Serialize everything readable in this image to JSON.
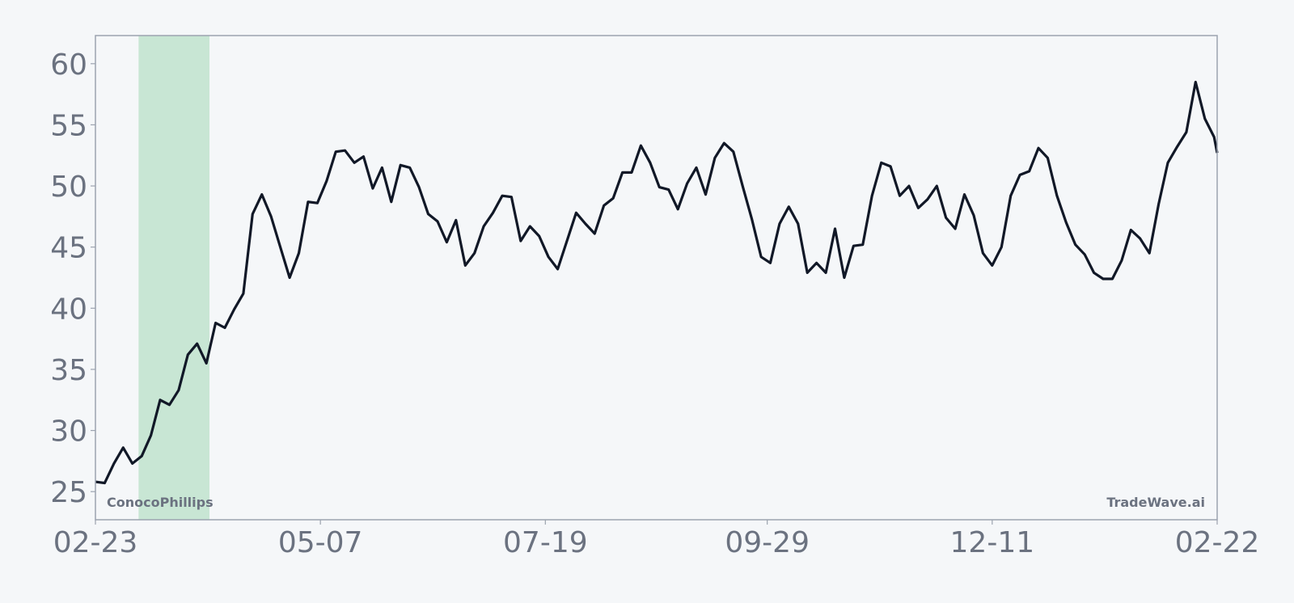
{
  "chart_data": {
    "type": "line",
    "title": "",
    "xlabel": "",
    "ylabel": "",
    "ylim": [
      22.7,
      62.3
    ],
    "yticks": [
      25,
      30,
      35,
      40,
      45,
      50,
      55,
      60
    ],
    "xticks": [
      "02-23",
      "05-07",
      "07-19",
      "09-29",
      "12-11",
      "02-22"
    ],
    "grid": false,
    "legend": "none",
    "watermark_left": "ConocoPhillips",
    "watermark_right": "TradeWave.ai",
    "highlight_range": [
      "03-09",
      "04-01"
    ],
    "colors": {
      "line": "#111827",
      "highlight": "#c8e6d4",
      "background": "#f5f7f9",
      "axis": "#9ca3af",
      "text": "#6b7280"
    },
    "x": [
      "02-23",
      "02-26",
      "03-01",
      "03-04",
      "03-07",
      "03-10",
      "03-13",
      "03-16",
      "03-19",
      "03-22",
      "03-25",
      "03-28",
      "03-31",
      "04-03",
      "04-06",
      "04-09",
      "04-12",
      "04-15",
      "04-18",
      "04-21",
      "04-24",
      "04-27",
      "04-30",
      "05-03",
      "05-06",
      "05-09",
      "05-12",
      "05-15",
      "05-18",
      "05-21",
      "05-24",
      "05-27",
      "05-30",
      "06-02",
      "06-05",
      "06-08",
      "06-11",
      "06-14",
      "06-17",
      "06-20",
      "06-23",
      "06-26",
      "06-29",
      "07-02",
      "07-05",
      "07-08",
      "07-11",
      "07-14",
      "07-17",
      "07-20",
      "07-23",
      "07-26",
      "07-29",
      "08-01",
      "08-04",
      "08-07",
      "08-10",
      "08-13",
      "08-16",
      "08-19",
      "08-22",
      "08-25",
      "08-28",
      "08-31",
      "09-03",
      "09-06",
      "09-09",
      "09-12",
      "09-15",
      "09-18",
      "09-21",
      "09-24",
      "09-27",
      "09-30",
      "10-03",
      "10-06",
      "10-09",
      "10-12",
      "10-15",
      "10-18",
      "10-21",
      "10-24",
      "10-27",
      "10-30",
      "11-02",
      "11-05",
      "11-08",
      "11-11",
      "11-14",
      "11-17",
      "11-20",
      "11-23",
      "11-26",
      "11-29",
      "12-02",
      "12-05",
      "12-08",
      "12-11",
      "12-14",
      "12-17",
      "12-20",
      "12-23",
      "12-26",
      "12-29",
      "01-01",
      "01-04",
      "01-07",
      "01-10",
      "01-13",
      "01-16",
      "01-19",
      "01-22",
      "01-25",
      "01-28",
      "01-31",
      "02-03",
      "02-06",
      "02-09",
      "02-12",
      "02-15",
      "02-18",
      "02-21",
      "02-22"
    ],
    "values": [
      25.8,
      25.7,
      27.3,
      28.6,
      27.3,
      27.9,
      29.6,
      32.5,
      32.1,
      33.3,
      36.2,
      37.1,
      35.5,
      38.8,
      38.4,
      39.9,
      41.2,
      47.7,
      49.3,
      47.5,
      45.0,
      42.5,
      44.5,
      48.7,
      48.6,
      50.4,
      52.8,
      52.9,
      51.9,
      52.4,
      49.8,
      51.5,
      48.7,
      51.7,
      51.5,
      49.9,
      47.7,
      47.1,
      45.4,
      47.2,
      43.5,
      44.5,
      46.7,
      47.8,
      49.2,
      49.1,
      45.5,
      46.7,
      45.9,
      44.2,
      43.2,
      45.5,
      47.8,
      46.9,
      46.1,
      48.4,
      49.0,
      51.1,
      51.1,
      53.3,
      51.9,
      49.9,
      49.7,
      48.1,
      50.2,
      51.5,
      49.3,
      52.3,
      53.5,
      52.8,
      50.0,
      47.3,
      44.2,
      43.7,
      46.9,
      48.3,
      46.9,
      42.9,
      43.7,
      42.9,
      46.5,
      42.5,
      45.1,
      45.2,
      49.2,
      51.9,
      51.6,
      49.2,
      50.0,
      48.2,
      48.9,
      50.0,
      47.4,
      46.5,
      49.3,
      47.6,
      44.5,
      43.5,
      45.0,
      49.2,
      50.9,
      51.2,
      53.1,
      52.3,
      49.2,
      47.0,
      45.2,
      44.4,
      42.9,
      42.4,
      42.4,
      43.9,
      46.4,
      45.7,
      44.5,
      48.5,
      51.9,
      53.2,
      54.4,
      58.5,
      55.5,
      54.0,
      52.7
    ]
  }
}
